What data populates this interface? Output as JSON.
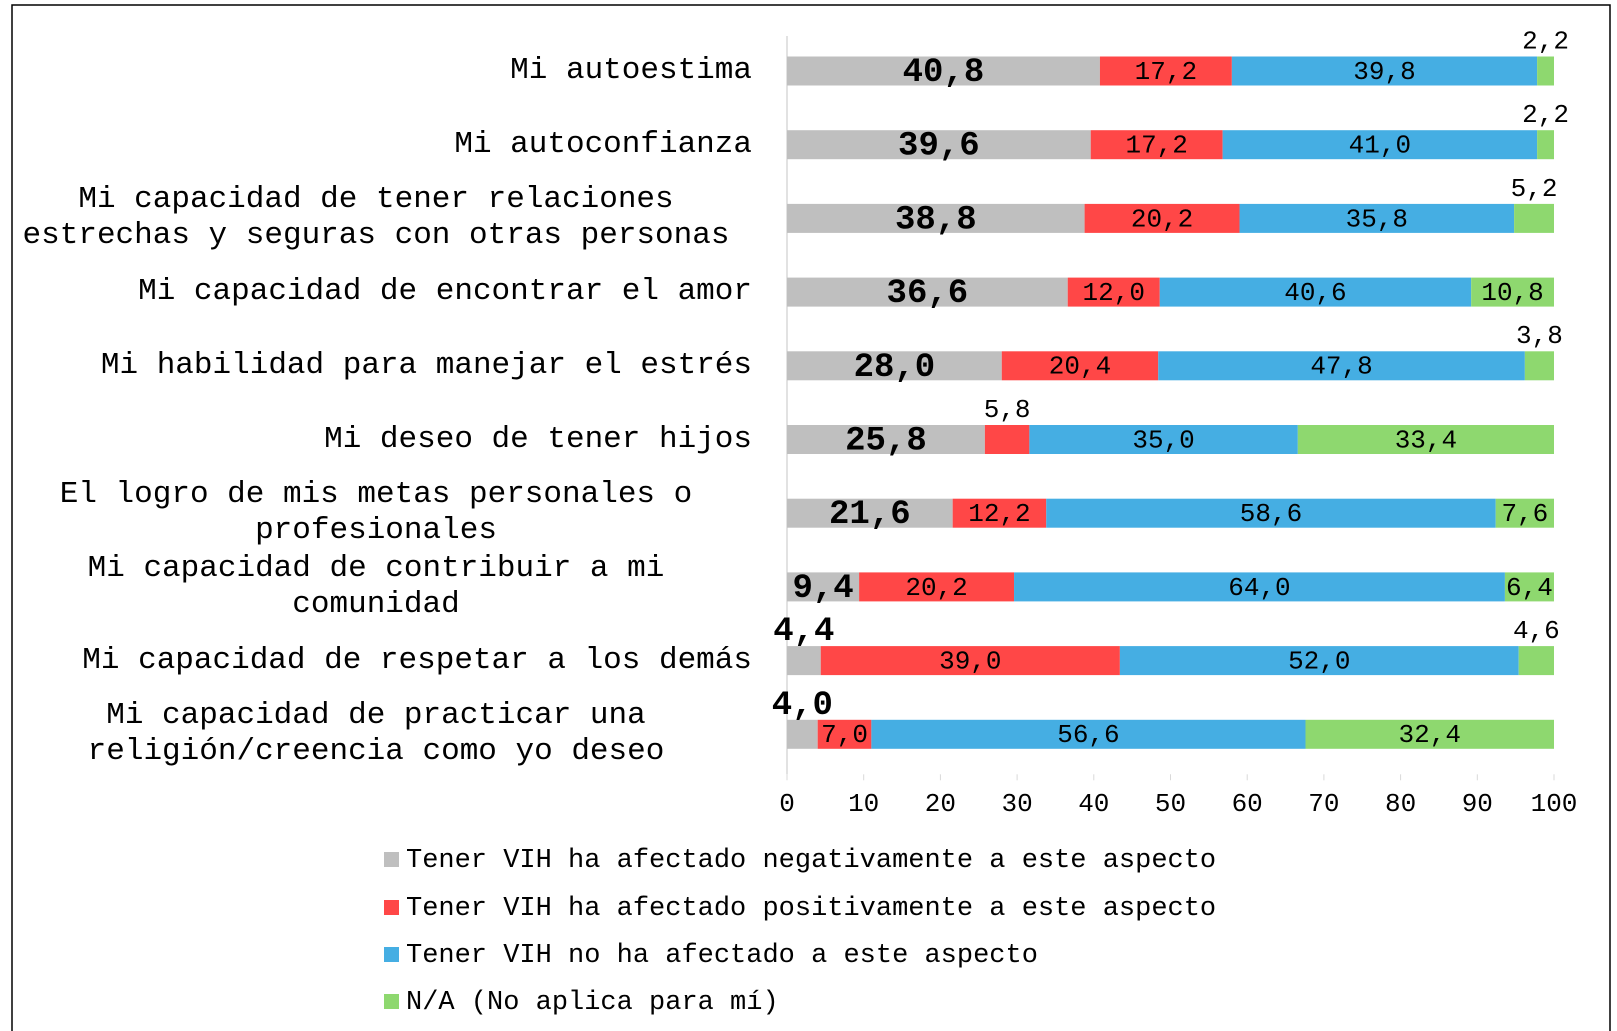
{
  "chart_data": {
    "type": "stacked_barh",
    "categories": [
      "Mi autoestima",
      "Mi autoconfianza",
      "Mi capacidad de tener relaciones estrechas y seguras con otras personas",
      "Mi capacidad de encontrar el amor",
      "Mi habilidad para manejar el estrés",
      "Mi deseo de tener hijos",
      "El logro de mis metas personales o profesionales",
      "Mi capacidad de contribuir a mi comunidad",
      "Mi capacidad de respetar a los demás",
      "Mi capacidad de practicar una religión/creencia como yo deseo"
    ],
    "series": [
      {
        "name": "Tener VIH ha afectado negativamente a este aspecto",
        "color": "#bfbfbf",
        "values": [
          40.8,
          39.6,
          38.8,
          36.6,
          28.0,
          25.8,
          21.6,
          9.4,
          4.4,
          4.0
        ],
        "value_labels": [
          "40,8",
          "39,6",
          "38,8",
          "36,6",
          "28,0",
          "25,8",
          "21,6",
          "9,4",
          "4,4",
          "4,0"
        ]
      },
      {
        "name": "Tener VIH ha afectado positivamente a este aspecto",
        "color": "#ff4747",
        "values": [
          17.2,
          17.2,
          20.2,
          12.0,
          20.4,
          5.8,
          12.2,
          20.2,
          39.0,
          7.0
        ],
        "value_labels": [
          "17,2",
          "17,2",
          "20,2",
          "12,0",
          "20,4",
          "5,8",
          "12,2",
          "20,2",
          "39,0",
          "7,0"
        ]
      },
      {
        "name": "Tener VIH no ha afectado a este aspecto",
        "color": "#45aee3",
        "values": [
          39.8,
          41.0,
          35.8,
          40.6,
          47.8,
          35.0,
          58.6,
          64.0,
          52.0,
          56.6
        ],
        "value_labels": [
          "39,8",
          "41,0",
          "35,8",
          "40,6",
          "47,8",
          "35,0",
          "58,6",
          "64,0",
          "52,0",
          "56,6"
        ]
      },
      {
        "name": "N/A (No aplica para mí)",
        "color": "#8ed86f",
        "values": [
          2.2,
          2.2,
          5.2,
          10.8,
          3.8,
          33.4,
          7.6,
          6.4,
          4.6,
          32.4
        ],
        "value_labels": [
          "2,2",
          "2,2",
          "5,2",
          "10,8",
          "3,8",
          "33,4",
          "7,6",
          "6,4",
          "4,6",
          "32,4"
        ]
      }
    ],
    "xlim": [
      0,
      100
    ],
    "xticks": [
      0,
      10,
      20,
      30,
      40,
      50,
      60,
      70,
      80,
      90,
      100
    ],
    "legend": "bottom"
  }
}
